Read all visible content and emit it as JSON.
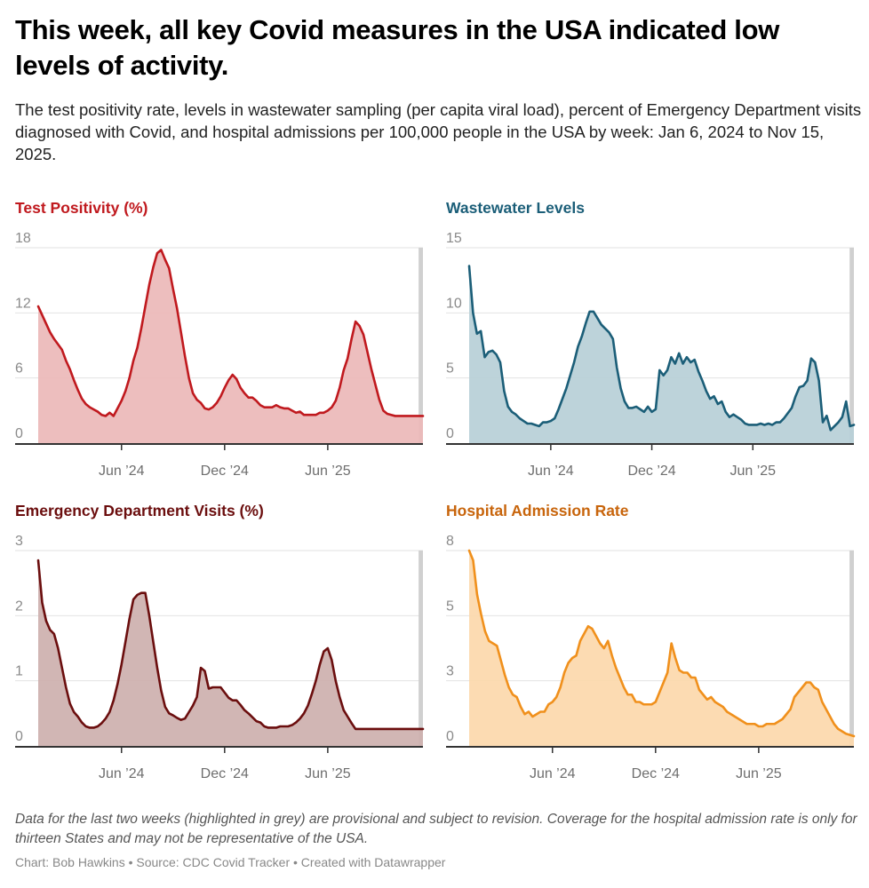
{
  "header": {
    "title": "This week, all key Covid measures in the USA indicated low levels of activity.",
    "subtitle": "The test positivity rate, levels in wastewater sampling (per capita viral load), percent of Emergency Department visits diagnosed with Covid, and hospital admissions per 100,000 people in the USA by week: Jan 6, 2024 to Nov 15, 2025."
  },
  "footer": {
    "notes": "Data for the last two weeks (highlighted in grey) are provisional and subject to revision. Coverage for the hospital admission rate is only for thirteen States and may not be representative of the USA.",
    "credit": "Chart: Bob Hawkins • Source: CDC Covid Tracker • Created with Datawrapper"
  },
  "colors": {
    "test_positivity": "#c0191e",
    "wastewater": "#1b5e78",
    "emergency": "#6b0e0e",
    "hospital": "#f0901c",
    "provisional_band": "#d0d0d0",
    "gridline": "#e2e2e2",
    "axis": "#333333"
  },
  "chart_data": [
    {
      "type": "area",
      "id": "test_positivity",
      "title": "Test Positivity (%)",
      "x_start": "2024-01-06",
      "x_end": "2025-11-15",
      "x_interval": "week",
      "xticks": [
        {
          "label": "Jun ’24",
          "week": 21
        },
        {
          "label": "Dec ’24",
          "week": 47
        },
        {
          "label": "Jun ’25",
          "week": 73
        }
      ],
      "ylim": [
        0,
        18
      ],
      "yticks": [
        0,
        6,
        12,
        18
      ],
      "ytick_labels": [
        "0",
        "6",
        "12",
        "18"
      ],
      "provisional_weeks": 2,
      "grid": true,
      "values": [
        12.6,
        11.8,
        11.0,
        10.2,
        9.6,
        9.1,
        8.6,
        7.6,
        6.8,
        5.8,
        4.9,
        4.1,
        3.6,
        3.3,
        3.1,
        2.9,
        2.6,
        2.5,
        2.8,
        2.5,
        3.2,
        3.9,
        4.8,
        6.0,
        7.6,
        8.8,
        10.6,
        12.6,
        14.6,
        16.2,
        17.5,
        17.8,
        16.9,
        16.1,
        14.2,
        12.4,
        10.2,
        8.0,
        6.0,
        4.6,
        4.0,
        3.7,
        3.2,
        3.1,
        3.3,
        3.7,
        4.3,
        5.1,
        5.8,
        6.3,
        5.9,
        5.1,
        4.6,
        4.2,
        4.2,
        3.9,
        3.5,
        3.3,
        3.3,
        3.3,
        3.5,
        3.3,
        3.2,
        3.2,
        3.0,
        2.8,
        2.9,
        2.6,
        2.6,
        2.6,
        2.6,
        2.8,
        2.8,
        3.0,
        3.3,
        3.9,
        5.1,
        6.7,
        7.8,
        9.6,
        11.2,
        10.8,
        10.0,
        8.4,
        6.8,
        5.4,
        4.0,
        3.0,
        2.7,
        2.6,
        2.5,
        2.5,
        2.5,
        2.5,
        2.5,
        2.5,
        2.5,
        2.5
      ]
    },
    {
      "type": "area",
      "id": "wastewater",
      "title": "Wastewater Levels",
      "x_start": "2024-01-06",
      "x_end": "2025-11-15",
      "x_interval": "week",
      "xticks": [
        {
          "label": "Jun ’24",
          "week": 21
        },
        {
          "label": "Dec ’24",
          "week": 47
        },
        {
          "label": "Jun ’25",
          "week": 73
        }
      ],
      "ylim": [
        0,
        15
      ],
      "yticks": [
        0,
        5,
        10,
        15
      ],
      "ytick_labels": [
        "0",
        "5",
        "10",
        "15"
      ],
      "provisional_weeks": 2,
      "grid": true,
      "values": [
        13.6,
        10.0,
        8.4,
        8.6,
        6.6,
        7.0,
        7.1,
        6.8,
        6.2,
        4.0,
        2.8,
        2.4,
        2.2,
        1.9,
        1.7,
        1.5,
        1.5,
        1.4,
        1.3,
        1.6,
        1.6,
        1.7,
        1.9,
        2.6,
        3.4,
        4.2,
        5.2,
        6.2,
        7.4,
        8.2,
        9.2,
        10.1,
        10.1,
        9.6,
        9.1,
        8.8,
        8.5,
        8.0,
        5.8,
        4.2,
        3.2,
        2.7,
        2.7,
        2.8,
        2.6,
        2.4,
        2.8,
        2.4,
        2.6,
        5.6,
        5.2,
        5.6,
        6.6,
        6.1,
        6.9,
        6.1,
        6.6,
        6.2,
        6.4,
        5.5,
        4.8,
        4.0,
        3.4,
        3.6,
        3.0,
        3.2,
        2.4,
        2.0,
        2.2,
        2.0,
        1.8,
        1.5,
        1.4,
        1.4,
        1.4,
        1.5,
        1.4,
        1.5,
        1.4,
        1.6,
        1.6,
        1.9,
        2.3,
        2.7,
        3.6,
        4.3,
        4.4,
        4.8,
        6.5,
        6.2,
        4.8,
        1.6,
        2.1,
        1.0,
        1.3,
        1.6,
        2.0,
        3.2,
        1.3,
        1.4
      ]
    },
    {
      "type": "area",
      "id": "emergency",
      "title": "Emergency Department Visits (%)",
      "x_start": "2024-01-06",
      "x_end": "2025-11-15",
      "x_interval": "week",
      "xticks": [
        {
          "label": "Jun ’24",
          "week": 21
        },
        {
          "label": "Dec ’24",
          "week": 47
        },
        {
          "label": "Jun ’25",
          "week": 73
        }
      ],
      "ylim": [
        0,
        3
      ],
      "yticks": [
        0,
        1,
        2,
        3
      ],
      "ytick_labels": [
        "0",
        "1",
        "2",
        "3"
      ],
      "provisional_weeks": 2,
      "grid": true,
      "values": [
        2.85,
        2.2,
        1.92,
        1.78,
        1.72,
        1.5,
        1.2,
        0.9,
        0.65,
        0.52,
        0.45,
        0.36,
        0.3,
        0.28,
        0.28,
        0.3,
        0.35,
        0.42,
        0.52,
        0.7,
        0.95,
        1.25,
        1.6,
        1.95,
        2.25,
        2.32,
        2.35,
        2.35,
        2.0,
        1.6,
        1.2,
        0.85,
        0.6,
        0.5,
        0.47,
        0.43,
        0.4,
        0.42,
        0.52,
        0.62,
        0.75,
        1.2,
        1.15,
        0.88,
        0.9,
        0.9,
        0.9,
        0.82,
        0.74,
        0.7,
        0.7,
        0.63,
        0.55,
        0.5,
        0.44,
        0.38,
        0.36,
        0.3,
        0.28,
        0.28,
        0.28,
        0.3,
        0.3,
        0.3,
        0.32,
        0.36,
        0.42,
        0.5,
        0.62,
        0.8,
        1.0,
        1.25,
        1.45,
        1.5,
        1.32,
        1.0,
        0.75,
        0.55,
        0.45,
        0.35,
        0.26,
        0.26,
        0.26,
        0.26,
        0.26,
        0.26,
        0.26,
        0.26,
        0.26,
        0.26,
        0.26,
        0.26,
        0.26,
        0.26,
        0.26,
        0.26,
        0.26,
        0.26
      ]
    },
    {
      "type": "area",
      "id": "hospital",
      "title": "Hospital Admission Rate",
      "x_start": "2024-01-06",
      "x_end": "2025-11-15",
      "x_interval": "week",
      "xticks": [
        {
          "label": "Jun ’24",
          "week": 21
        },
        {
          "label": "Dec ’24",
          "week": 47
        },
        {
          "label": "Jun ’25",
          "week": 73
        }
      ],
      "ylim": [
        0,
        8
      ],
      "yticks": [
        0,
        2.67,
        5.33,
        8
      ],
      "ytick_labels": [
        "0",
        "3",
        "5",
        "8"
      ],
      "provisional_weeks": 2,
      "grid": true,
      "values": [
        8.0,
        7.6,
        6.2,
        5.4,
        4.7,
        4.3,
        4.2,
        4.1,
        3.5,
        2.9,
        2.4,
        2.1,
        2.0,
        1.6,
        1.3,
        1.4,
        1.2,
        1.3,
        1.4,
        1.4,
        1.7,
        1.8,
        2.0,
        2.4,
        3.0,
        3.4,
        3.6,
        3.7,
        4.3,
        4.6,
        4.9,
        4.8,
        4.5,
        4.2,
        4.0,
        4.3,
        3.7,
        3.2,
        2.8,
        2.4,
        2.1,
        2.1,
        1.8,
        1.8,
        1.7,
        1.7,
        1.7,
        1.8,
        2.2,
        2.6,
        3.0,
        4.2,
        3.6,
        3.1,
        3.0,
        3.0,
        2.8,
        2.8,
        2.3,
        2.1,
        1.9,
        2.0,
        1.8,
        1.7,
        1.6,
        1.4,
        1.3,
        1.2,
        1.1,
        1.0,
        0.9,
        0.9,
        0.9,
        0.8,
        0.8,
        0.9,
        0.9,
        0.9,
        1.0,
        1.1,
        1.3,
        1.5,
        2.0,
        2.2,
        2.4,
        2.6,
        2.6,
        2.4,
        2.3,
        1.8,
        1.5,
        1.2,
        0.9,
        0.7,
        0.6,
        0.5,
        0.45,
        0.4
      ]
    }
  ]
}
